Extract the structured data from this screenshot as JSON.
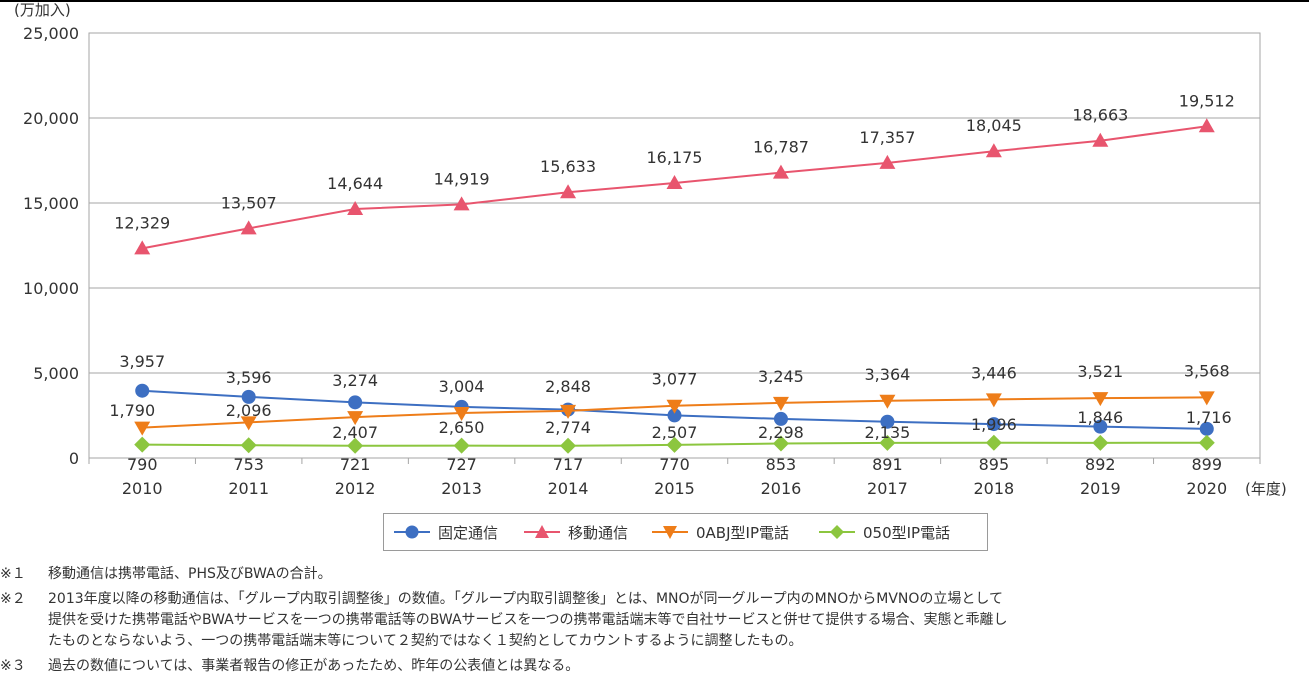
{
  "chart_data": {
    "type": "line",
    "unit_label": "(万加入)",
    "x_unit_label": "(年度)",
    "categories": [
      "2010",
      "2011",
      "2012",
      "2013",
      "2014",
      "2015",
      "2016",
      "2017",
      "2018",
      "2019",
      "2020"
    ],
    "ylim": [
      0,
      25000
    ],
    "yticks": [
      "0",
      "5,000",
      "10,000",
      "15,000",
      "20,000",
      "25,000"
    ],
    "grid": true,
    "legend_position": "bottom",
    "series": [
      {
        "name": "固定通信",
        "marker": "circle",
        "color": "#3d6fc2",
        "values": [
          3957,
          3596,
          3274,
          3004,
          2848,
          2507,
          2298,
          2135,
          1996,
          1846,
          1716
        ],
        "labels": [
          "3,957",
          "3,596",
          "3,274",
          "3,004",
          "2,848",
          "2,507",
          "2,298",
          "2,135",
          "1,996",
          "1,846",
          "1,716"
        ]
      },
      {
        "name": "移動通信",
        "marker": "triangle-up",
        "color": "#e8556e",
        "values": [
          12329,
          13507,
          14644,
          14919,
          15633,
          16175,
          16787,
          17357,
          18045,
          18663,
          19512
        ],
        "labels": [
          "12,329",
          "13,507",
          "14,644",
          "14,919",
          "15,633",
          "16,175",
          "16,787",
          "17,357",
          "18,045",
          "18,663",
          "19,512"
        ]
      },
      {
        "name": "0ABJ型IP電話",
        "marker": "triangle-down",
        "color": "#ee7d19",
        "values": [
          1790,
          2096,
          2407,
          2650,
          2774,
          3077,
          3245,
          3364,
          3446,
          3521,
          3568
        ],
        "labels": [
          "1,790",
          "2,096",
          "2,407",
          "2,650",
          "2,774",
          "3,077",
          "3,245",
          "3,364",
          "3,446",
          "3,521",
          "3,568"
        ]
      },
      {
        "name": "050型IP電話",
        "marker": "diamond",
        "color": "#8cc63f",
        "values": [
          790,
          753,
          721,
          727,
          717,
          770,
          853,
          891,
          895,
          892,
          899
        ],
        "labels": [
          "790",
          "753",
          "721",
          "727",
          "717",
          "770",
          "853",
          "891",
          "895",
          "892",
          "899"
        ]
      }
    ]
  },
  "notes": [
    {
      "mark": "※１",
      "lines": [
        "移動通信は携帯電話、PHS及びBWAの合計。"
      ]
    },
    {
      "mark": "※２",
      "lines": [
        "2013年度以降の移動通信は、「グループ内取引調整後」の数値。「グループ内取引調整後」とは、MNOが同一グループ内のMNOからMVNOの立場として",
        "提供を受けた携帯電話やBWAサービスを一つの携帯電話等のBWAサービスを一つの携帯電話端末等で自社サービスと併せて提供する場合、実態と乖離し",
        "たものとならないよう、一つの携帯電話端末等について２契約ではなく１契約としてカウントするように調整したもの。"
      ]
    },
    {
      "mark": "※３",
      "lines": [
        "過去の数値については、事業者報告の修正があったため、昨年の公表値とは異なる。"
      ]
    }
  ]
}
